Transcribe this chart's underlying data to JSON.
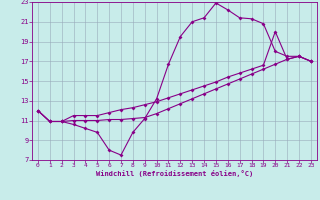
{
  "xlabel": "Windchill (Refroidissement éolien,°C)",
  "bg_color": "#c8ecea",
  "line_color": "#880088",
  "grid_color": "#99aabb",
  "xlim": [
    -0.5,
    23.5
  ],
  "ylim": [
    7,
    23
  ],
  "xticks": [
    0,
    1,
    2,
    3,
    4,
    5,
    6,
    7,
    8,
    9,
    10,
    11,
    12,
    13,
    14,
    15,
    16,
    17,
    18,
    19,
    20,
    21,
    22,
    23
  ],
  "yticks": [
    7,
    9,
    11,
    13,
    15,
    17,
    19,
    21,
    23
  ],
  "line1_x": [
    0,
    1,
    2,
    3,
    4,
    5,
    6,
    7,
    8,
    9,
    10,
    11,
    12,
    13,
    14,
    15,
    16,
    17,
    18,
    19,
    20,
    21,
    22,
    23
  ],
  "line1_y": [
    12.0,
    10.9,
    10.9,
    10.6,
    10.2,
    9.8,
    8.0,
    7.5,
    9.8,
    11.2,
    13.2,
    16.7,
    19.5,
    21.0,
    21.4,
    22.9,
    22.2,
    21.4,
    21.3,
    20.8,
    18.0,
    17.5,
    17.5,
    17.0
  ],
  "line2_x": [
    0,
    1,
    2,
    3,
    4,
    5,
    6,
    7,
    8,
    9,
    10,
    11,
    12,
    13,
    14,
    15,
    16,
    17,
    18,
    19,
    20,
    21,
    22,
    23
  ],
  "line2_y": [
    12.0,
    10.9,
    10.9,
    11.5,
    11.5,
    11.5,
    11.8,
    12.1,
    12.3,
    12.6,
    12.9,
    13.3,
    13.7,
    14.1,
    14.5,
    14.9,
    15.4,
    15.8,
    16.2,
    16.6,
    20.0,
    17.2,
    17.5,
    17.0
  ],
  "line3_x": [
    0,
    1,
    2,
    3,
    4,
    5,
    6,
    7,
    8,
    9,
    10,
    11,
    12,
    13,
    14,
    15,
    16,
    17,
    18,
    19,
    20,
    21,
    22,
    23
  ],
  "line3_y": [
    12.0,
    10.9,
    10.9,
    11.0,
    11.0,
    11.0,
    11.1,
    11.1,
    11.2,
    11.3,
    11.7,
    12.2,
    12.7,
    13.2,
    13.7,
    14.2,
    14.7,
    15.2,
    15.7,
    16.2,
    16.7,
    17.2,
    17.5,
    17.0
  ]
}
